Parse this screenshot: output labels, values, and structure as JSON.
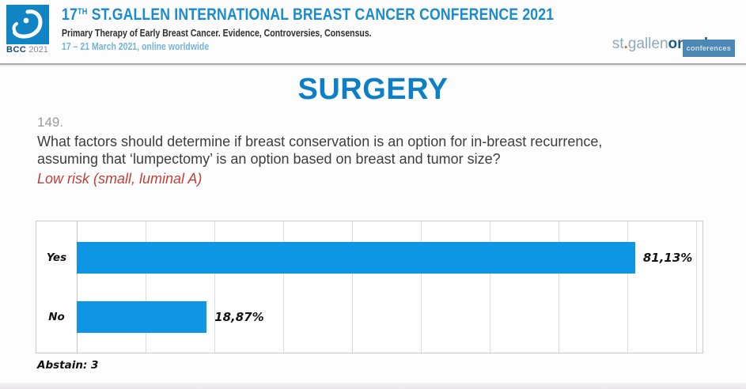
{
  "header": {
    "logo_text": "BCC",
    "logo_year": "2021",
    "title_num": "17",
    "title_sup": "TH",
    "title_rest": " ST.GALLEN INTERNATIONAL BREAST CANCER CONFERENCE 2021",
    "subtitle": "Primary Therapy of Early Breast Cancer. Evidence, Controversies, Consensus.",
    "date_line": "17 – 21 March 2021, online worldwide",
    "brand": {
      "st": "st",
      "dot": ".",
      "gallen": "gallen",
      "oncology": "oncology",
      "badge": "conferences"
    }
  },
  "section_title": "SURGERY",
  "question": {
    "number": "149.",
    "text": "What factors should determine if breast conservation is an option for in-breast recurrence, assuming that ‘lumpectomy’ is an option based on breast and tumor size?",
    "highlight": "Low risk (small, luminal A)"
  },
  "chart_data": {
    "type": "bar",
    "orientation": "horizontal",
    "categories": [
      "Yes",
      "No"
    ],
    "values": [
      81.13,
      18.87
    ],
    "value_labels": [
      "81,13%",
      "18,87%"
    ],
    "xlim": [
      0,
      90
    ],
    "gridline_interval": 10,
    "grid": true,
    "legend": false,
    "bar_color": "#0e95e4",
    "title": "",
    "xlabel": "",
    "ylabel": ""
  },
  "abstain_note": "Abstain: 3",
  "colors": {
    "header_title_blue": "#1a8ccd",
    "section_title_blue": "#0e7fc6",
    "bar_blue": "#0e95e4",
    "highlight_red": "#bf4038",
    "date_blue": "#72b5da"
  }
}
